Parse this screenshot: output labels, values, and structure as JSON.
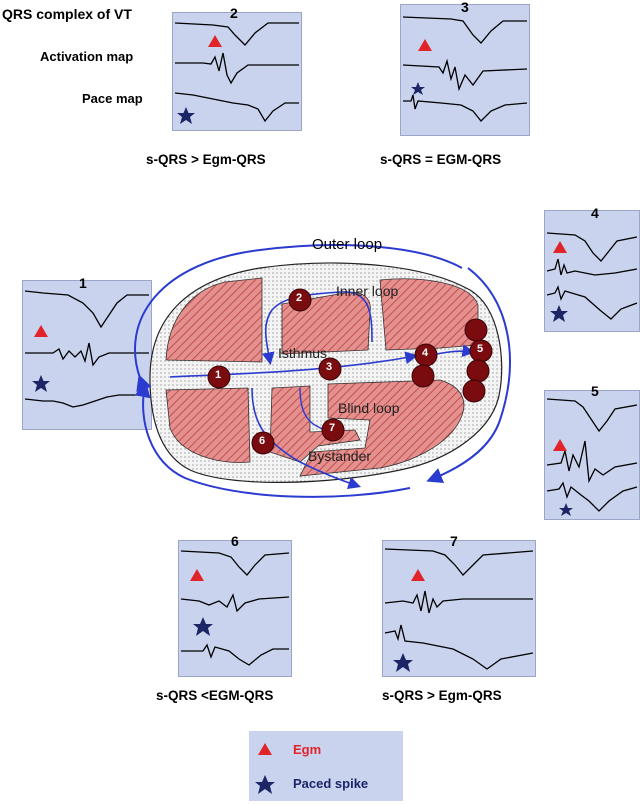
{
  "row_labels": {
    "qrs": "QRS complex of VT",
    "activation": "Activation map",
    "pace": "Pace map"
  },
  "panels": [
    {
      "number": "1",
      "comparison": ""
    },
    {
      "number": "2",
      "comparison": "s-QRS > Egm-QRS"
    },
    {
      "number": "3",
      "comparison": "s-QRS = EGM-QRS"
    },
    {
      "number": "4",
      "comparison": ""
    },
    {
      "number": "5",
      "comparison": ""
    },
    {
      "number": "6",
      "comparison": "s-QRS <EGM-QRS"
    },
    {
      "number": "7",
      "comparison": "s-QRS > Egm-QRS"
    }
  ],
  "circuit_labels": {
    "outer_loop": "Outer loop",
    "inner_loop": "Inner loop",
    "isthmus": "Isthmus",
    "blind_loop": "Blind loop",
    "bystander": "Bystander"
  },
  "site_numbers": [
    "1",
    "2",
    "3",
    "4",
    "5",
    "6",
    "7"
  ],
  "legend": {
    "egm_label": "Egm",
    "paced_label": "Paced spike"
  },
  "colors": {
    "panel_bg": "#c9d3ee",
    "egm_marker": "#e0242a",
    "spike_marker": "#1c2566",
    "arrow": "#2b3bd0",
    "scar_fill": "#e4908e",
    "scar_hatch": "#b84040",
    "site_dot": "#7a0c10",
    "egm_text": "#e0242a",
    "paced_text": "#1c2566"
  }
}
